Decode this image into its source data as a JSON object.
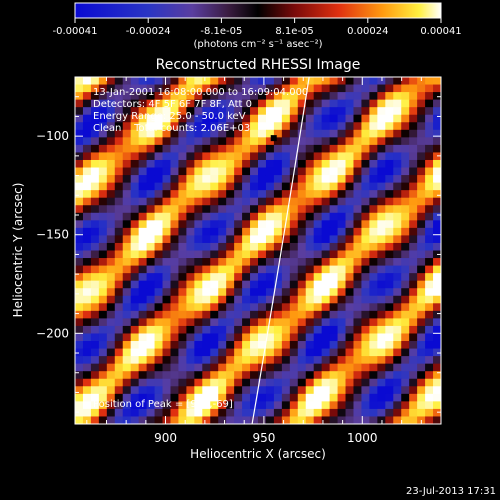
{
  "chart_data": {
    "type": "heatmap",
    "title": "Reconstructed RHESSI Image",
    "xlabel": "Heliocentric X (arcsec)",
    "ylabel": "Heliocentric Y (arcsec)",
    "xlim": [
      854,
      1040
    ],
    "ylim": [
      -246,
      -70
    ],
    "x_ticks": [
      900,
      950,
      1000
    ],
    "y_ticks": [
      -100,
      -150,
      -200
    ],
    "colorbar": {
      "min": -0.00041,
      "max": 0.00041,
      "tick_labels": [
        "-0.00041",
        "-0.00024",
        "-8.1e-05",
        "8.1e-05",
        "0.00024",
        "0.00041"
      ],
      "units_label": "(photons cm⁻² s⁻¹ asec⁻²)"
    },
    "annotations": {
      "time_range": "13-Jan-2001 16:08:00.000 to 16:09:04.000",
      "detectors": "Detectors: 4F 5F 6F 7F 8F, Att 0",
      "energy_range": "Energy Range: 25.0 - 50.0 keV",
      "clean": "Clean    Total counts: 2.06E+03",
      "peak": "Position of Peak = [906,-69]"
    },
    "footer_timestamp": "23-Jul-2013 17:31",
    "colors": {
      "background": "#000000",
      "colormap": [
        "#0a0ad2",
        "#2a35c4",
        "#5a3ea0",
        "#3a1c40",
        "#000000",
        "#7a0a0a",
        "#e03010",
        "#ff9a10",
        "#fff040",
        "#ffffff"
      ]
    }
  }
}
